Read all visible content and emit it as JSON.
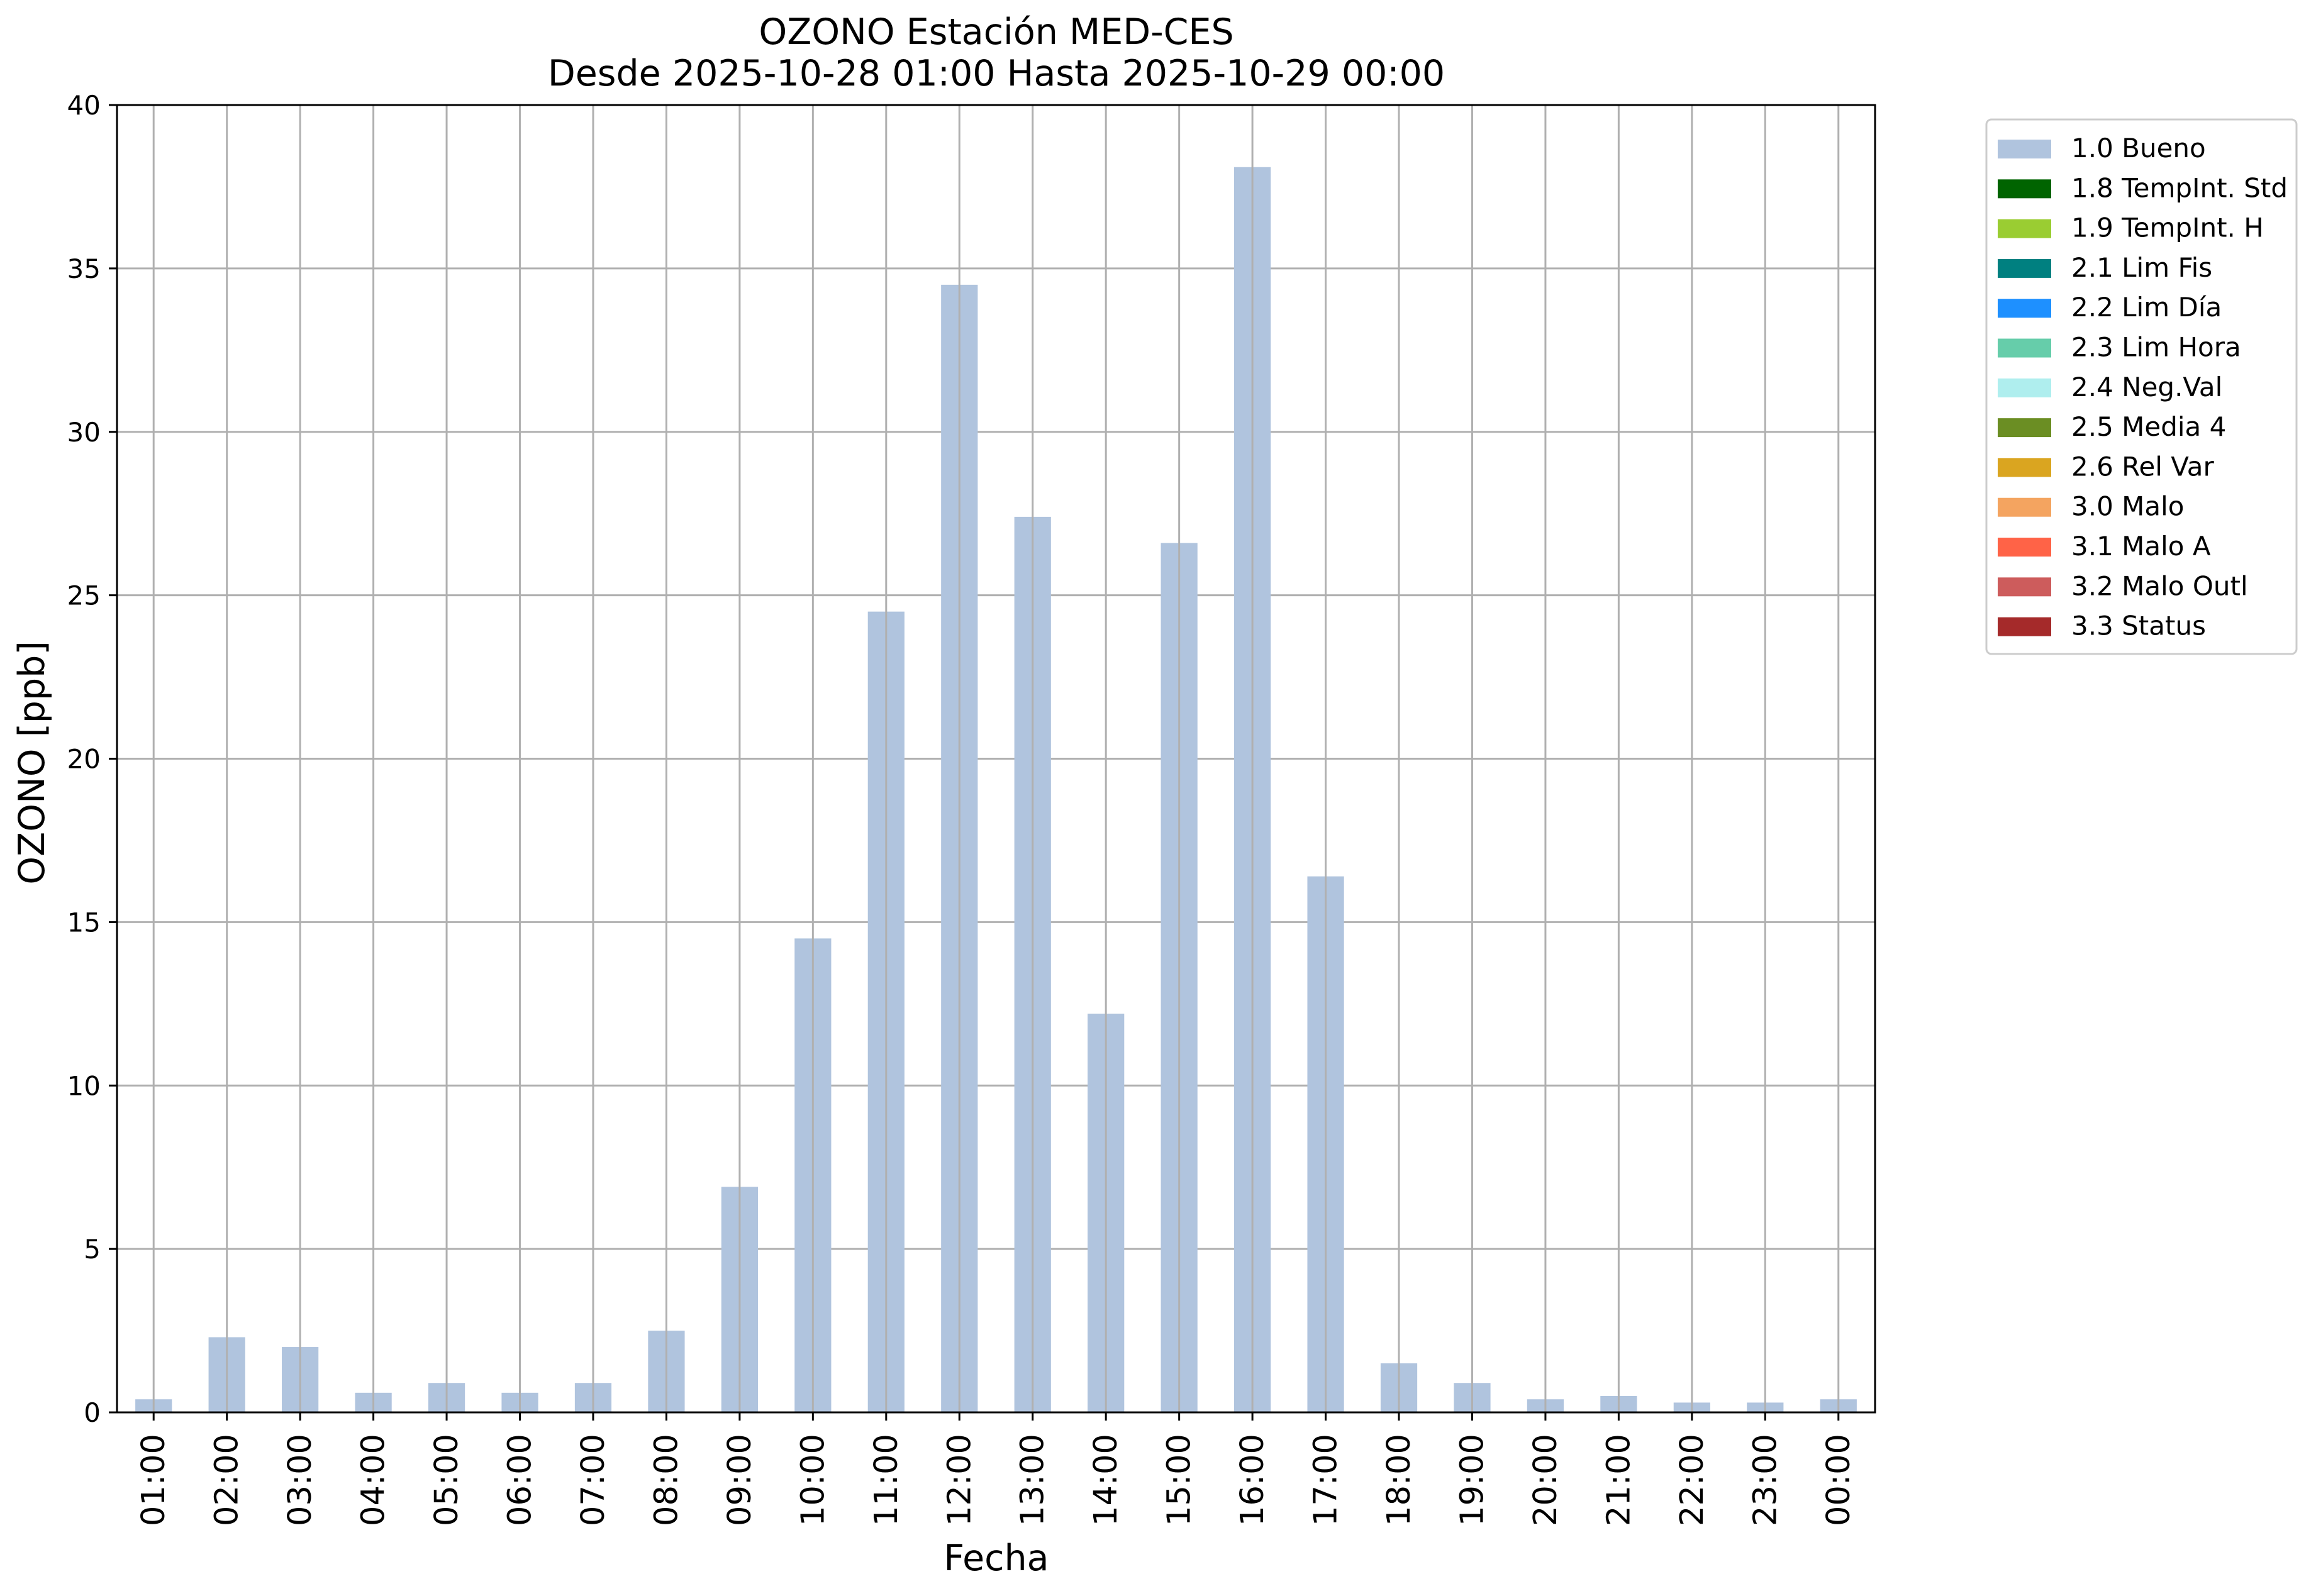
{
  "chart_data": {
    "type": "bar",
    "title": "OZONO Estación MED-CES",
    "subtitle": "Desde 2025-10-28 01:00 Hasta 2025-10-29 00:00",
    "xlabel": "Fecha",
    "ylabel": "OZONO [ppb]",
    "ylim": [
      0,
      40
    ],
    "yticks": [
      0,
      5,
      10,
      15,
      20,
      25,
      30,
      35,
      40
    ],
    "grid": true,
    "legend_position": "outside-top-right",
    "categories": [
      "01:00",
      "02:00",
      "03:00",
      "04:00",
      "05:00",
      "06:00",
      "07:00",
      "08:00",
      "09:00",
      "10:00",
      "11:00",
      "12:00",
      "13:00",
      "14:00",
      "15:00",
      "16:00",
      "17:00",
      "18:00",
      "19:00",
      "20:00",
      "21:00",
      "22:00",
      "23:00",
      "00:00"
    ],
    "series": [
      {
        "name": "1.0 Bueno",
        "color": "#b0c4de",
        "values": [
          0.4,
          2.3,
          2.0,
          0.6,
          0.9,
          0.6,
          0.9,
          2.5,
          6.9,
          14.5,
          24.5,
          34.5,
          27.4,
          12.2,
          26.6,
          38.1,
          16.4,
          1.5,
          0.9,
          0.4,
          0.5,
          0.3,
          0.3,
          0.4
        ]
      }
    ],
    "legend": [
      {
        "label": "1.0 Bueno",
        "color": "#b0c4de"
      },
      {
        "label": "1.8 TempInt. Std",
        "color": "#006400"
      },
      {
        "label": "1.9 TempInt. H",
        "color": "#9acd32"
      },
      {
        "label": "2.1 Lim Fis",
        "color": "#008080"
      },
      {
        "label": "2.2 Lim Día",
        "color": "#1e90ff"
      },
      {
        "label": "2.3 Lim Hora",
        "color": "#66cdaa"
      },
      {
        "label": "2.4 Neg.Val",
        "color": "#afeeee"
      },
      {
        "label": "2.5 Media 4",
        "color": "#6b8e23"
      },
      {
        "label": "2.6 Rel Var",
        "color": "#daa520"
      },
      {
        "label": "3.0 Malo",
        "color": "#f4a460"
      },
      {
        "label": "3.1 Malo A",
        "color": "#ff6347"
      },
      {
        "label": "3.2 Malo Outl",
        "color": "#cd5c5c"
      },
      {
        "label": "3.3 Status",
        "color": "#a52a2a"
      }
    ]
  }
}
